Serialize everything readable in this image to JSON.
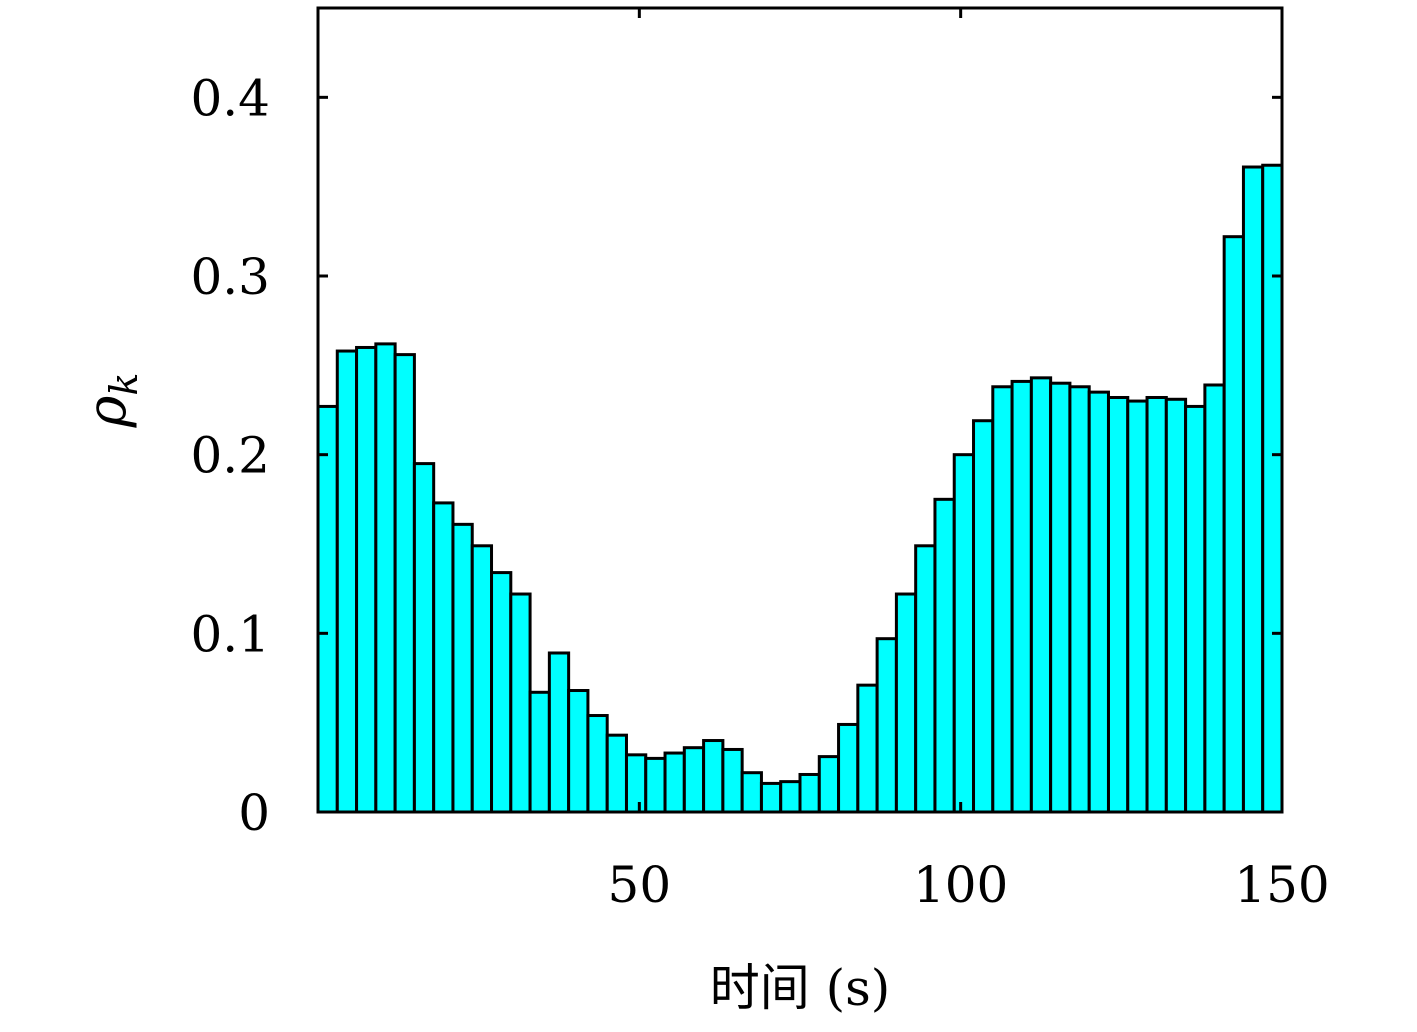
{
  "chart_data": {
    "type": "bar",
    "xlabel": "时间 (s)",
    "ylabel": "ρ_k",
    "ylabel_symbol": "ρ",
    "ylabel_subscript": "k",
    "xlim": [
      0,
      150
    ],
    "ylim": [
      0,
      0.45
    ],
    "bin_width": 3,
    "x_ticks": [
      {
        "value": 50,
        "label": "50"
      },
      {
        "value": 100,
        "label": "100"
      },
      {
        "value": 150,
        "label": "150"
      }
    ],
    "y_ticks": [
      {
        "value": 0,
        "label": "0"
      },
      {
        "value": 0.1,
        "label": "0.1"
      },
      {
        "value": 0.2,
        "label": "0.2"
      },
      {
        "value": 0.3,
        "label": "0.3"
      },
      {
        "value": 0.4,
        "label": "0.4"
      }
    ],
    "x": [
      1.5,
      4.5,
      7.5,
      10.5,
      13.5,
      16.5,
      19.5,
      22.5,
      25.5,
      28.5,
      31.5,
      34.5,
      37.5,
      40.5,
      43.5,
      46.5,
      49.5,
      52.5,
      55.5,
      58.5,
      61.5,
      64.5,
      67.5,
      70.5,
      73.5,
      76.5,
      79.5,
      82.5,
      85.5,
      88.5,
      91.5,
      94.5,
      97.5,
      100.5,
      103.5,
      106.5,
      109.5,
      112.5,
      115.5,
      118.5,
      121.5,
      124.5,
      127.5,
      130.5,
      133.5,
      136.5,
      139.5,
      142.5,
      145.5,
      148.5
    ],
    "values": [
      0.227,
      0.258,
      0.26,
      0.262,
      0.256,
      0.195,
      0.173,
      0.161,
      0.149,
      0.134,
      0.122,
      0.067,
      0.089,
      0.068,
      0.054,
      0.043,
      0.032,
      0.03,
      0.033,
      0.036,
      0.04,
      0.035,
      0.022,
      0.016,
      0.017,
      0.021,
      0.031,
      0.049,
      0.071,
      0.097,
      0.122,
      0.149,
      0.175,
      0.2,
      0.219,
      0.238,
      0.241,
      0.243,
      0.24,
      0.238,
      0.235,
      0.232,
      0.23,
      0.232,
      0.231,
      0.227,
      0.239,
      0.322,
      0.361,
      0.362
    ],
    "bar_color": "#00ffff",
    "edge_color": "#000000",
    "grid": false,
    "legend": "none"
  }
}
